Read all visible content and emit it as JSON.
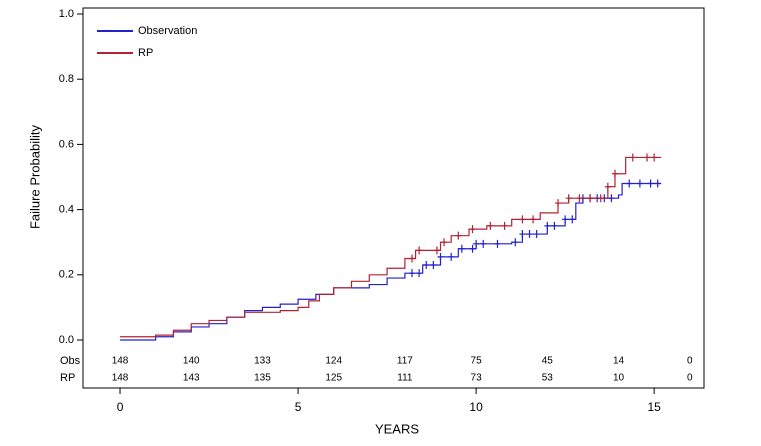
{
  "chart_data": {
    "type": "step",
    "xlabel": "YEARS",
    "ylabel": "Failure Probability",
    "xlim": [
      -1.04,
      16.4
    ],
    "ylim": [
      0,
      1
    ],
    "xticks": [
      0,
      5,
      10,
      15
    ],
    "yticks": [
      {
        "value": 0,
        "label": "0.0"
      },
      0.2,
      0.4,
      0.6,
      0.8,
      {
        "value": 1,
        "label": "1.0"
      }
    ],
    "legend": "top-left",
    "series": [
      {
        "name": "Observation",
        "color": "#2222cc",
        "x": [
          0,
          1,
          1.5,
          2,
          2.5,
          3,
          3.5,
          4,
          4.5,
          5,
          5.5,
          6,
          7,
          7.5,
          8,
          8.5,
          9,
          9.5,
          10,
          11,
          11.3,
          12,
          12.5,
          12.8,
          13,
          14,
          14.1,
          15.2
        ],
        "values": [
          0,
          0.01,
          0.025,
          0.04,
          0.05,
          0.07,
          0.09,
          0.1,
          0.11,
          0.125,
          0.14,
          0.16,
          0.17,
          0.19,
          0.205,
          0.23,
          0.255,
          0.28,
          0.295,
          0.3,
          0.325,
          0.35,
          0.37,
          0.42,
          0.435,
          0.445,
          0.48,
          0.48
        ],
        "censor_x": [
          8.2,
          8.4,
          8.6,
          8.8,
          9.0,
          9.3,
          9.6,
          9.9,
          10.0,
          10.2,
          10.6,
          11.1,
          11.3,
          11.5,
          11.7,
          12.0,
          12.2,
          12.5,
          12.7,
          13.0,
          13.2,
          13.4,
          13.6,
          13.8,
          14.3,
          14.6,
          14.9,
          15.1
        ]
      },
      {
        "name": "RP",
        "color": "#b22234",
        "x": [
          0,
          1,
          1.5,
          2,
          2.5,
          3,
          3.5,
          4.5,
          5,
          5.3,
          5.6,
          6,
          6.5,
          7,
          7.5,
          8,
          8.3,
          9,
          9.3,
          9.8,
          10.3,
          11,
          11.8,
          12.3,
          12.6,
          13.7,
          13.9,
          14.2,
          15.2
        ],
        "values": [
          0.01,
          0.015,
          0.03,
          0.05,
          0.06,
          0.07,
          0.085,
          0.09,
          0.1,
          0.12,
          0.14,
          0.16,
          0.18,
          0.2,
          0.22,
          0.25,
          0.275,
          0.3,
          0.32,
          0.34,
          0.35,
          0.37,
          0.39,
          0.42,
          0.435,
          0.47,
          0.51,
          0.56,
          0.56
        ],
        "censor_x": [
          8.2,
          8.4,
          8.9,
          9.1,
          9.5,
          9.9,
          10.4,
          10.8,
          11.3,
          11.6,
          12.3,
          12.6,
          12.9,
          13.2,
          13.5,
          13.7,
          13.9,
          14.4,
          14.8,
          15.0
        ]
      }
    ],
    "at_risk": {
      "times": [
        0,
        2,
        4,
        6,
        8,
        10,
        12,
        14,
        16
      ],
      "rows": [
        {
          "name": "Obs",
          "values": [
            148,
            140,
            133,
            124,
            117,
            75,
            45,
            14,
            0
          ]
        },
        {
          "name": "RP",
          "values": [
            148,
            143,
            135,
            125,
            111,
            73,
            53,
            10,
            0
          ]
        }
      ]
    }
  }
}
